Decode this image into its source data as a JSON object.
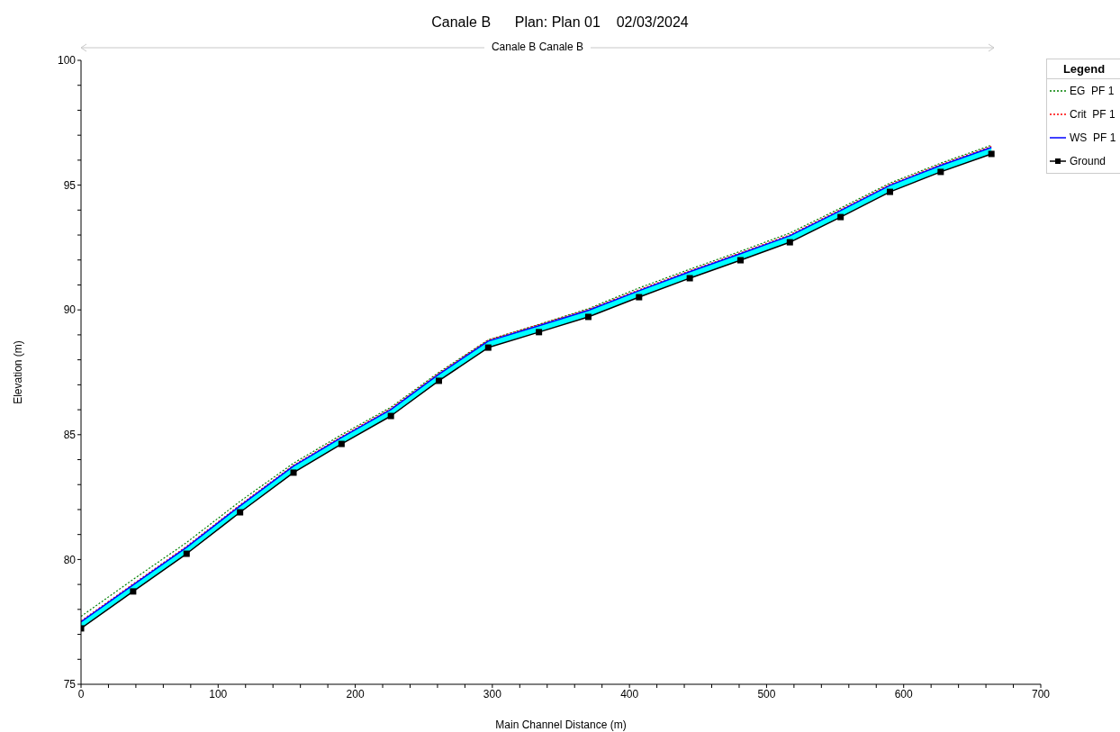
{
  "chart_data": {
    "type": "line",
    "title": "Canale B      Plan: Plan 01    02/03/2024",
    "annotations": [
      "Canale B Canale B"
    ],
    "xlabel": "Main Channel Distance (m)",
    "ylabel": "Elevation (m)",
    "legend_title": "Legend",
    "legend": "right",
    "x": [
      0,
      38,
      77,
      116,
      155,
      190,
      226,
      261,
      297,
      334,
      370,
      407,
      444,
      481,
      517,
      554,
      590,
      627,
      664
    ],
    "xlim": [
      0,
      700
    ],
    "ylim": [
      75,
      100
    ],
    "xticks": [
      0,
      {
        "value": 20,
        "label": null
      },
      {
        "value": 40,
        "label": null
      },
      {
        "value": 60,
        "label": null
      },
      {
        "value": 80,
        "label": null
      },
      100,
      {
        "value": 120,
        "label": null
      },
      {
        "value": 140,
        "label": null
      },
      {
        "value": 160,
        "label": null
      },
      {
        "value": 180,
        "label": null
      },
      200,
      {
        "value": 220,
        "label": null
      },
      {
        "value": 240,
        "label": null
      },
      {
        "value": 260,
        "label": null
      },
      {
        "value": 280,
        "label": null
      },
      300,
      {
        "value": 320,
        "label": null
      },
      {
        "value": 340,
        "label": null
      },
      {
        "value": 360,
        "label": null
      },
      {
        "value": 380,
        "label": null
      },
      400,
      {
        "value": 420,
        "label": null
      },
      {
        "value": 440,
        "label": null
      },
      {
        "value": 460,
        "label": null
      },
      {
        "value": 480,
        "label": null
      },
      500,
      {
        "value": 520,
        "label": null
      },
      {
        "value": 540,
        "label": null
      },
      {
        "value": 560,
        "label": null
      },
      {
        "value": 580,
        "label": null
      },
      600,
      {
        "value": 620,
        "label": null
      },
      {
        "value": 640,
        "label": null
      },
      {
        "value": 660,
        "label": null
      },
      {
        "value": 680,
        "label": null
      },
      700
    ],
    "yticks": [
      75,
      {
        "value": 76,
        "label": null
      },
      {
        "value": 77,
        "label": null
      },
      {
        "value": 78,
        "label": null
      },
      {
        "value": 79,
        "label": null
      },
      80,
      {
        "value": 81,
        "label": null
      },
      {
        "value": 82,
        "label": null
      },
      {
        "value": 83,
        "label": null
      },
      {
        "value": 84,
        "label": null
      },
      85,
      {
        "value": 86,
        "label": null
      },
      {
        "value": 87,
        "label": null
      },
      {
        "value": 88,
        "label": null
      },
      {
        "value": 89,
        "label": null
      },
      90,
      {
        "value": 91,
        "label": null
      },
      {
        "value": 92,
        "label": null
      },
      {
        "value": 93,
        "label": null
      },
      {
        "value": 94,
        "label": null
      },
      95,
      {
        "value": 96,
        "label": null
      },
      {
        "value": 97,
        "label": null
      },
      {
        "value": 98,
        "label": null
      },
      {
        "value": 99,
        "label": null
      },
      100
    ],
    "series": [
      {
        "name": "EG  PF 1",
        "color": "#008000",
        "line_style": "dotted",
        "marker": "none",
        "values": [
          77.72,
          79.2,
          80.68,
          82.33,
          83.86,
          85.0,
          86.1,
          87.5,
          88.8,
          89.42,
          90.05,
          90.88,
          91.63,
          92.35,
          93.08,
          94.08,
          95.08,
          95.88,
          96.6
        ]
      },
      {
        "name": "Crit  PF 1",
        "color": "#ff0000",
        "line_style": "dotted",
        "marker": "none",
        "values": [
          77.54,
          79.02,
          80.53,
          82.19,
          83.78,
          84.93,
          86.05,
          87.46,
          88.79,
          89.41,
          90.02,
          90.81,
          91.57,
          92.29,
          93.01,
          94.02,
          95.03,
          95.83,
          96.55
        ]
      },
      {
        "name": "WS  PF 1",
        "color": "#0000ff",
        "line_style": "solid",
        "marker": "none",
        "values": [
          77.5,
          78.98,
          80.49,
          82.15,
          83.74,
          84.89,
          86.01,
          87.42,
          88.75,
          89.37,
          89.98,
          90.77,
          91.53,
          92.25,
          92.97,
          93.98,
          94.99,
          95.79,
          96.51
        ],
        "lower": [
          77.24,
          78.72,
          80.23,
          81.89,
          83.48,
          84.63,
          85.75,
          87.16,
          88.49,
          89.11,
          89.72,
          90.51,
          91.27,
          91.99,
          92.71,
          93.72,
          94.73,
          95.53,
          96.25
        ],
        "upper": [
          77.5,
          78.98,
          80.49,
          82.15,
          83.74,
          84.89,
          86.01,
          87.42,
          88.75,
          89.37,
          89.98,
          90.77,
          91.53,
          92.25,
          92.97,
          93.98,
          94.99,
          95.79,
          96.51
        ]
      },
      {
        "name": "Ground",
        "color": "#000000",
        "line_style": "solid",
        "marker": "square",
        "values": [
          77.24,
          78.72,
          80.23,
          81.89,
          83.48,
          84.63,
          85.75,
          87.16,
          88.49,
          89.11,
          89.72,
          90.51,
          91.27,
          91.99,
          92.71,
          93.72,
          94.73,
          95.53,
          96.25
        ]
      }
    ]
  }
}
